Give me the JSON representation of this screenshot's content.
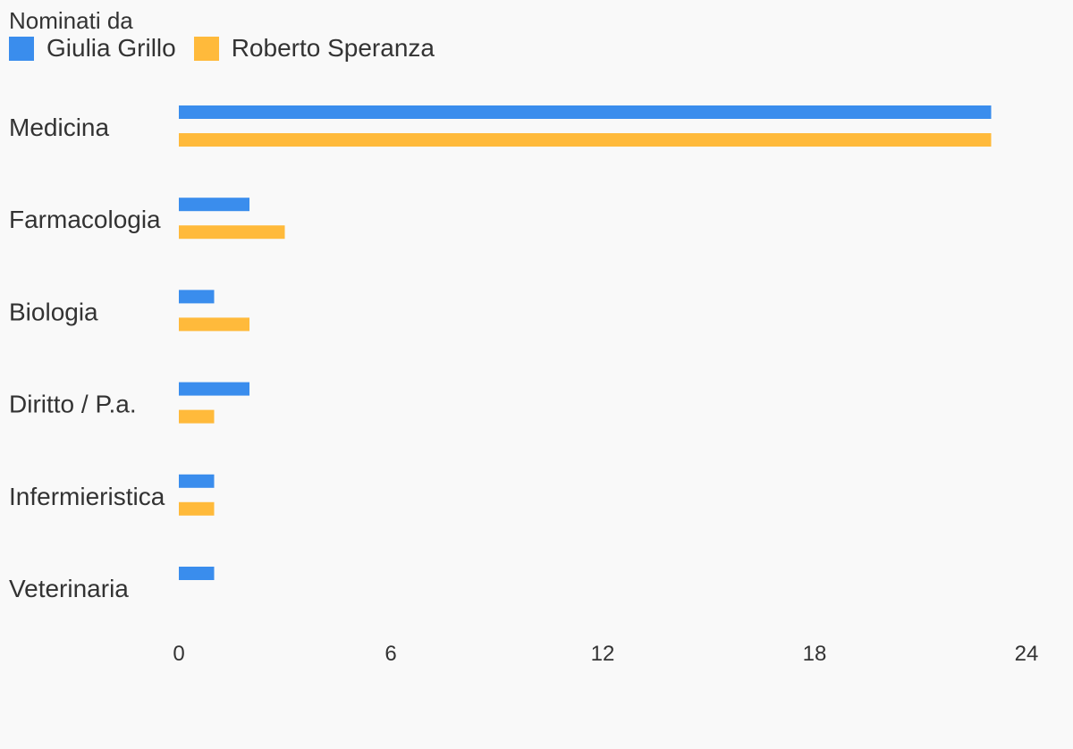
{
  "chart_data": {
    "type": "bar",
    "orientation": "horizontal",
    "legend_title": "Nominati da",
    "categories": [
      "Medicina",
      "Farmacologia",
      "Biologia",
      "Diritto / P.a.",
      "Infermieristica",
      "Veterinaria"
    ],
    "series": [
      {
        "name": "Giulia Grillo",
        "color": "#3a8ded",
        "values": [
          23,
          2,
          1,
          2,
          1,
          1
        ]
      },
      {
        "name": "Roberto Speranza",
        "color": "#ffba3b",
        "values": [
          23,
          3,
          2,
          1,
          1,
          0
        ]
      }
    ],
    "xlim": [
      0,
      24
    ],
    "xticks": [
      0,
      6,
      12,
      18,
      24
    ],
    "grid": false,
    "legend_position": "top-left"
  }
}
